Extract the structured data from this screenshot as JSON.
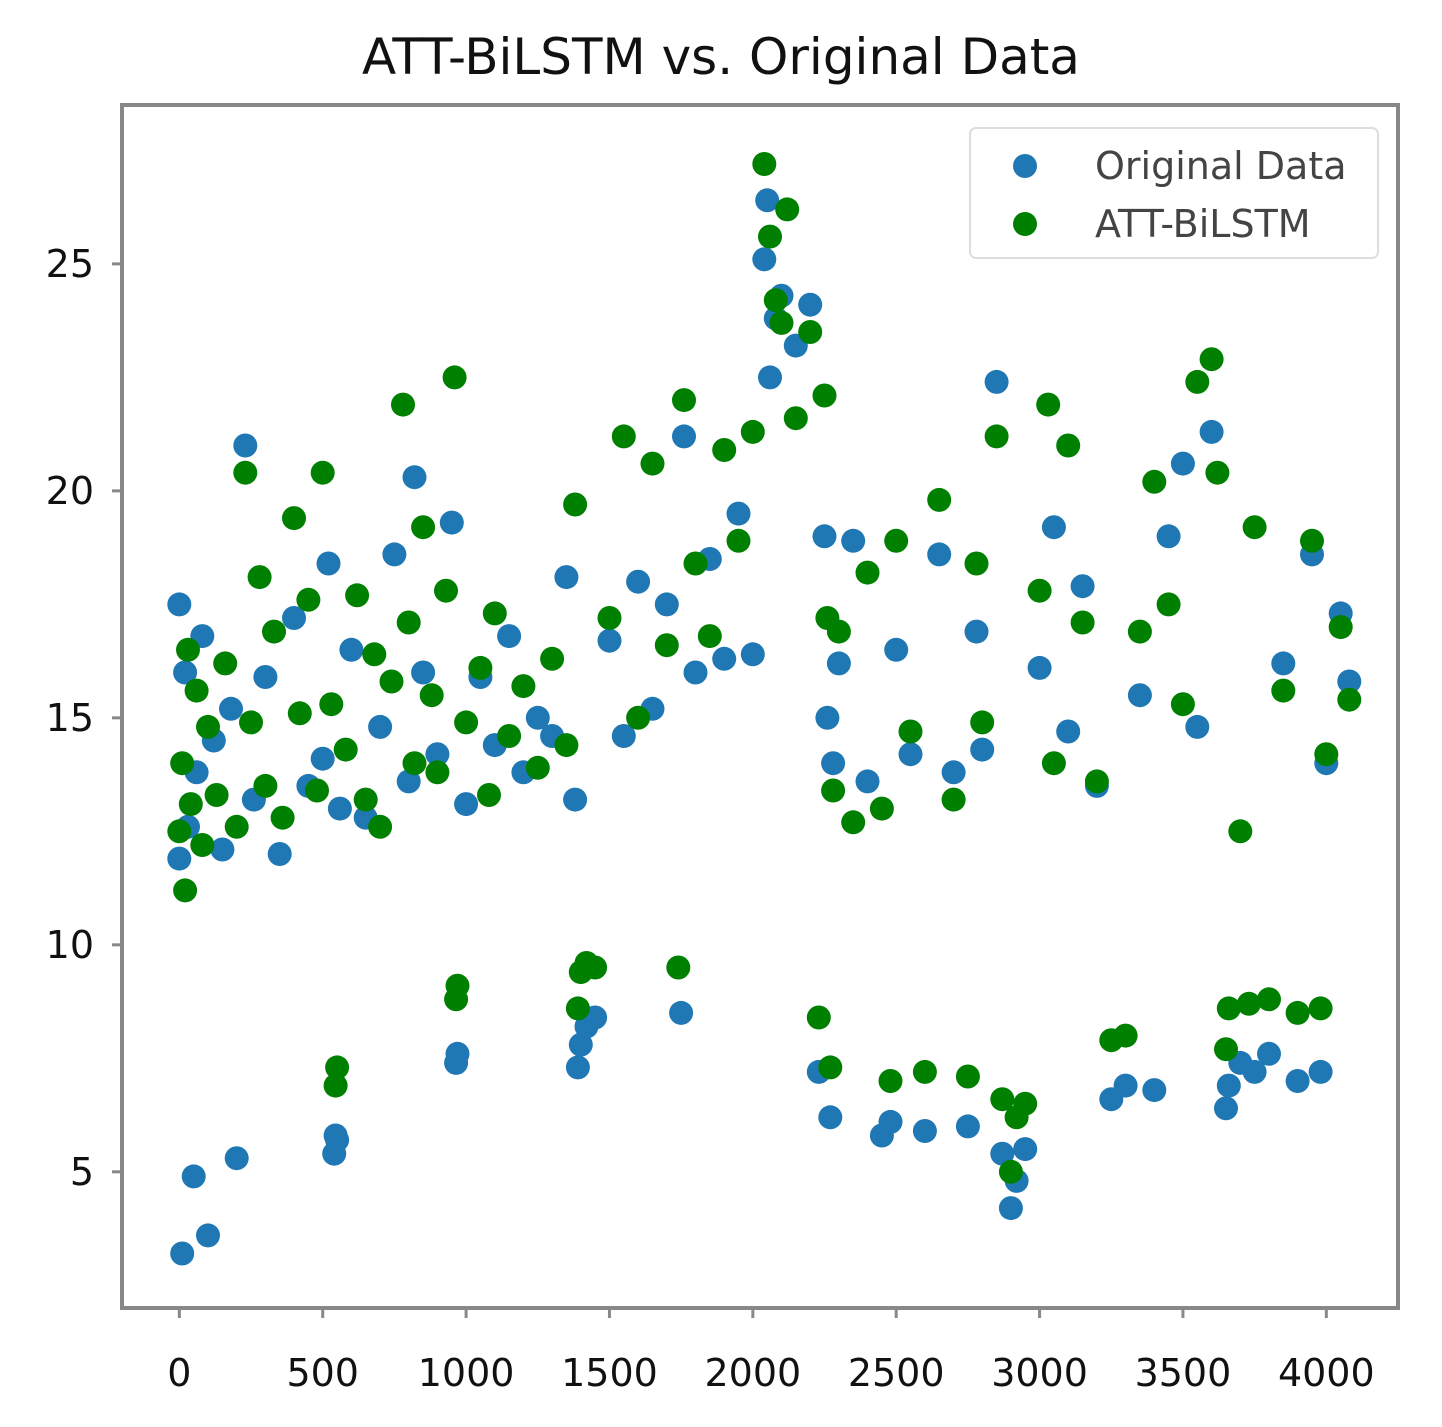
{
  "chart_data": {
    "type": "scatter",
    "title": "ATT-BiLSTM vs. Original Data",
    "xlabel": "",
    "ylabel": "",
    "xlim": [
      -200,
      4250
    ],
    "ylim": [
      2.0,
      28.5
    ],
    "x_ticks": [
      0,
      500,
      1000,
      1500,
      2000,
      2500,
      3000,
      3500,
      4000
    ],
    "y_ticks": [
      5,
      10,
      15,
      20,
      25
    ],
    "grid": false,
    "legend_position": "top-right",
    "series": [
      {
        "name": "Original Data",
        "color": "#1f77b4",
        "points": [
          [
            0,
            11.9
          ],
          [
            0,
            17.5
          ],
          [
            10,
            3.2
          ],
          [
            20,
            16.0
          ],
          [
            30,
            12.6
          ],
          [
            50,
            4.9
          ],
          [
            60,
            13.8
          ],
          [
            80,
            16.8
          ],
          [
            100,
            3.6
          ],
          [
            120,
            14.5
          ],
          [
            150,
            12.1
          ],
          [
            180,
            15.2
          ],
          [
            200,
            5.3
          ],
          [
            230,
            21.0
          ],
          [
            260,
            13.2
          ],
          [
            300,
            15.9
          ],
          [
            350,
            12.0
          ],
          [
            400,
            17.2
          ],
          [
            450,
            13.5
          ],
          [
            500,
            14.1
          ],
          [
            520,
            18.4
          ],
          [
            540,
            5.4
          ],
          [
            545,
            5.8
          ],
          [
            550,
            5.7
          ],
          [
            560,
            13.0
          ],
          [
            600,
            16.5
          ],
          [
            650,
            12.8
          ],
          [
            700,
            14.8
          ],
          [
            750,
            18.6
          ],
          [
            800,
            13.6
          ],
          [
            820,
            20.3
          ],
          [
            850,
            16.0
          ],
          [
            900,
            14.2
          ],
          [
            950,
            19.3
          ],
          [
            965,
            7.4
          ],
          [
            970,
            7.6
          ],
          [
            1000,
            13.1
          ],
          [
            1050,
            15.9
          ],
          [
            1100,
            14.4
          ],
          [
            1150,
            16.8
          ],
          [
            1200,
            13.8
          ],
          [
            1250,
            15.0
          ],
          [
            1300,
            14.6
          ],
          [
            1350,
            18.1
          ],
          [
            1380,
            13.2
          ],
          [
            1390,
            7.3
          ],
          [
            1400,
            7.8
          ],
          [
            1420,
            8.2
          ],
          [
            1450,
            8.4
          ],
          [
            1500,
            16.7
          ],
          [
            1550,
            14.6
          ],
          [
            1600,
            18.0
          ],
          [
            1650,
            15.2
          ],
          [
            1700,
            17.5
          ],
          [
            1750,
            8.5
          ],
          [
            1760,
            21.2
          ],
          [
            1800,
            16.0
          ],
          [
            1850,
            18.5
          ],
          [
            1900,
            16.3
          ],
          [
            1950,
            19.5
          ],
          [
            2000,
            16.4
          ],
          [
            2040,
            25.1
          ],
          [
            2050,
            26.4
          ],
          [
            2060,
            22.5
          ],
          [
            2080,
            23.8
          ],
          [
            2100,
            24.3
          ],
          [
            2150,
            23.2
          ],
          [
            2200,
            24.1
          ],
          [
            2230,
            7.2
          ],
          [
            2250,
            19.0
          ],
          [
            2260,
            15.0
          ],
          [
            2270,
            6.2
          ],
          [
            2280,
            14.0
          ],
          [
            2300,
            16.2
          ],
          [
            2350,
            18.9
          ],
          [
            2400,
            13.6
          ],
          [
            2450,
            5.8
          ],
          [
            2480,
            6.1
          ],
          [
            2500,
            16.5
          ],
          [
            2550,
            14.2
          ],
          [
            2600,
            5.9
          ],
          [
            2650,
            18.6
          ],
          [
            2700,
            13.8
          ],
          [
            2750,
            6.0
          ],
          [
            2780,
            16.9
          ],
          [
            2800,
            14.3
          ],
          [
            2850,
            22.4
          ],
          [
            2870,
            5.4
          ],
          [
            2900,
            4.2
          ],
          [
            2920,
            4.8
          ],
          [
            2950,
            5.5
          ],
          [
            3000,
            16.1
          ],
          [
            3050,
            19.2
          ],
          [
            3100,
            14.7
          ],
          [
            3150,
            17.9
          ],
          [
            3200,
            13.5
          ],
          [
            3250,
            6.6
          ],
          [
            3300,
            6.9
          ],
          [
            3350,
            15.5
          ],
          [
            3400,
            6.8
          ],
          [
            3450,
            19.0
          ],
          [
            3500,
            20.6
          ],
          [
            3550,
            14.8
          ],
          [
            3600,
            21.3
          ],
          [
            3650,
            6.4
          ],
          [
            3660,
            6.9
          ],
          [
            3700,
            7.4
          ],
          [
            3750,
            7.2
          ],
          [
            3800,
            7.6
          ],
          [
            3850,
            16.2
          ],
          [
            3900,
            7.0
          ],
          [
            3950,
            18.6
          ],
          [
            3980,
            7.2
          ],
          [
            4000,
            14.0
          ],
          [
            4050,
            17.3
          ],
          [
            4080,
            15.8
          ]
        ]
      },
      {
        "name": "ATT-BiLSTM",
        "color": "#008000",
        "points": [
          [
            0,
            12.5
          ],
          [
            10,
            14.0
          ],
          [
            20,
            11.2
          ],
          [
            30,
            16.5
          ],
          [
            40,
            13.1
          ],
          [
            60,
            15.6
          ],
          [
            80,
            12.2
          ],
          [
            100,
            14.8
          ],
          [
            130,
            13.3
          ],
          [
            160,
            16.2
          ],
          [
            200,
            12.6
          ],
          [
            230,
            20.4
          ],
          [
            250,
            14.9
          ],
          [
            280,
            18.1
          ],
          [
            300,
            13.5
          ],
          [
            330,
            16.9
          ],
          [
            360,
            12.8
          ],
          [
            400,
            19.4
          ],
          [
            420,
            15.1
          ],
          [
            450,
            17.6
          ],
          [
            480,
            13.4
          ],
          [
            500,
            20.4
          ],
          [
            530,
            15.3
          ],
          [
            545,
            6.9
          ],
          [
            550,
            7.3
          ],
          [
            580,
            14.3
          ],
          [
            620,
            17.7
          ],
          [
            650,
            13.2
          ],
          [
            680,
            16.4
          ],
          [
            700,
            12.6
          ],
          [
            740,
            15.8
          ],
          [
            780,
            21.9
          ],
          [
            800,
            17.1
          ],
          [
            820,
            14.0
          ],
          [
            850,
            19.2
          ],
          [
            880,
            15.5
          ],
          [
            900,
            13.8
          ],
          [
            930,
            17.8
          ],
          [
            960,
            22.5
          ],
          [
            965,
            8.8
          ],
          [
            970,
            9.1
          ],
          [
            1000,
            14.9
          ],
          [
            1050,
            16.1
          ],
          [
            1080,
            13.3
          ],
          [
            1100,
            17.3
          ],
          [
            1150,
            14.6
          ],
          [
            1200,
            15.7
          ],
          [
            1250,
            13.9
          ],
          [
            1300,
            16.3
          ],
          [
            1350,
            14.4
          ],
          [
            1380,
            19.7
          ],
          [
            1390,
            8.6
          ],
          [
            1400,
            9.4
          ],
          [
            1420,
            9.6
          ],
          [
            1450,
            9.5
          ],
          [
            1500,
            17.2
          ],
          [
            1550,
            21.2
          ],
          [
            1600,
            15.0
          ],
          [
            1650,
            20.6
          ],
          [
            1700,
            16.6
          ],
          [
            1740,
            9.5
          ],
          [
            1760,
            22.0
          ],
          [
            1800,
            18.4
          ],
          [
            1850,
            16.8
          ],
          [
            1900,
            20.9
          ],
          [
            1950,
            18.9
          ],
          [
            2000,
            21.3
          ],
          [
            2040,
            27.2
          ],
          [
            2060,
            25.6
          ],
          [
            2080,
            24.2
          ],
          [
            2100,
            23.7
          ],
          [
            2120,
            26.2
          ],
          [
            2150,
            21.6
          ],
          [
            2200,
            23.5
          ],
          [
            2230,
            8.4
          ],
          [
            2250,
            22.1
          ],
          [
            2260,
            17.2
          ],
          [
            2270,
            7.3
          ],
          [
            2280,
            13.4
          ],
          [
            2300,
            16.9
          ],
          [
            2350,
            12.7
          ],
          [
            2400,
            18.2
          ],
          [
            2450,
            13.0
          ],
          [
            2480,
            7.0
          ],
          [
            2500,
            18.9
          ],
          [
            2550,
            14.7
          ],
          [
            2600,
            7.2
          ],
          [
            2650,
            19.8
          ],
          [
            2700,
            13.2
          ],
          [
            2750,
            7.1
          ],
          [
            2780,
            18.4
          ],
          [
            2800,
            14.9
          ],
          [
            2850,
            21.2
          ],
          [
            2870,
            6.6
          ],
          [
            2900,
            5.0
          ],
          [
            2920,
            6.2
          ],
          [
            2950,
            6.5
          ],
          [
            3000,
            17.8
          ],
          [
            3030,
            21.9
          ],
          [
            3050,
            14.0
          ],
          [
            3100,
            21.0
          ],
          [
            3150,
            17.1
          ],
          [
            3200,
            13.6
          ],
          [
            3250,
            7.9
          ],
          [
            3300,
            8.0
          ],
          [
            3350,
            16.9
          ],
          [
            3400,
            20.2
          ],
          [
            3450,
            17.5
          ],
          [
            3500,
            15.3
          ],
          [
            3550,
            22.4
          ],
          [
            3600,
            22.9
          ],
          [
            3620,
            20.4
          ],
          [
            3650,
            7.7
          ],
          [
            3660,
            8.6
          ],
          [
            3700,
            12.5
          ],
          [
            3730,
            8.7
          ],
          [
            3750,
            19.2
          ],
          [
            3800,
            8.8
          ],
          [
            3850,
            15.6
          ],
          [
            3900,
            8.5
          ],
          [
            3950,
            18.9
          ],
          [
            3980,
            8.6
          ],
          [
            4000,
            14.2
          ],
          [
            4050,
            17.0
          ],
          [
            4080,
            15.4
          ]
        ]
      }
    ]
  }
}
